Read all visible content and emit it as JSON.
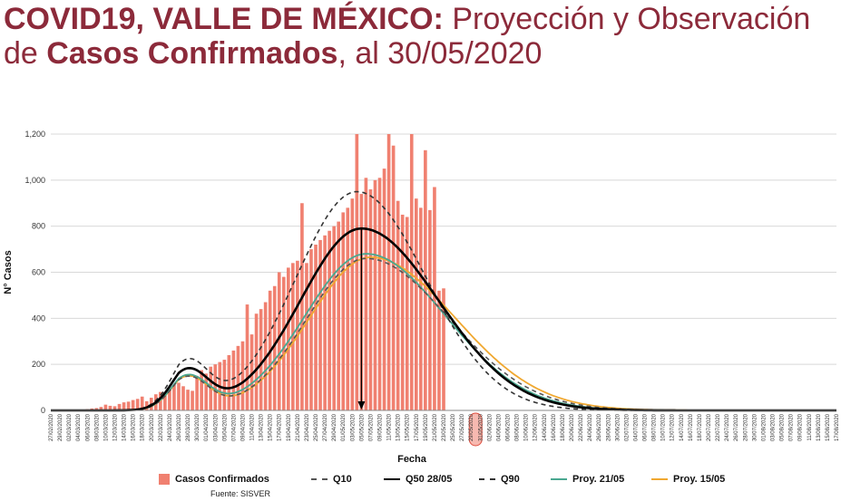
{
  "title": {
    "part1_bold": "COVID19, VALLE DE MÉXICO:",
    "part2": " Proyección y Observación de ",
    "part3_bold": "Casos Confirmados",
    "part4": ", al 30/05/2020"
  },
  "source": "Fuente: SISVER",
  "colors": {
    "bars": "#f08070",
    "q10": "#555555",
    "q50": "#000000",
    "q90": "#333333",
    "proy21": "#4aa890",
    "proy15": "#f0a830",
    "title": "#8c2a3a",
    "highlight": "#e05040"
  },
  "chart_data": {
    "type": "bar",
    "xlabel": "Fecha",
    "ylabel": "N° Casos",
    "ylim": [
      0,
      1200
    ],
    "yticks": [
      "0",
      "200",
      "400",
      "600",
      "800",
      "1,000",
      "1,200"
    ],
    "grid": true,
    "legend_position": "bottom",
    "date_start": "27/02/2020",
    "date_end": "17/08/2020",
    "highlighted_date": "30/05/2020",
    "arrow_date": "05/05/2020",
    "x_tick_labels": [
      "27/02/2020",
      "29/02/2020",
      "02/03/2020",
      "04/03/2020",
      "06/03/2020",
      "08/03/2020",
      "10/03/2020",
      "12/03/2020",
      "14/03/2020",
      "16/03/2020",
      "18/03/2020",
      "20/03/2020",
      "22/03/2020",
      "24/03/2020",
      "26/03/2020",
      "28/03/2020",
      "30/03/2020",
      "01/04/2020",
      "03/04/2020",
      "05/04/2020",
      "07/04/2020",
      "09/04/2020",
      "11/04/2020",
      "13/04/2020",
      "15/04/2020",
      "17/04/2020",
      "19/04/2020",
      "21/04/2020",
      "23/04/2020",
      "25/04/2020",
      "27/04/2020",
      "29/04/2020",
      "01/05/2020",
      "03/05/2020",
      "05/05/2020",
      "07/05/2020",
      "09/05/2020",
      "11/05/2020",
      "13/05/2020",
      "15/05/2020",
      "17/05/2020",
      "19/05/2020",
      "21/05/2020",
      "23/05/2020",
      "25/05/2020",
      "27/05/2020",
      "29/05/2020",
      "31/05/2020",
      "02/06/2020",
      "04/06/2020",
      "06/06/2020",
      "08/06/2020",
      "10/06/2020",
      "12/06/2020",
      "14/06/2020",
      "16/06/2020",
      "18/06/2020",
      "20/06/2020",
      "22/06/2020",
      "24/06/2020",
      "26/06/2020",
      "28/06/2020",
      "30/06/2020",
      "02/07/2020",
      "04/07/2020",
      "06/07/2020",
      "08/07/2020",
      "10/07/2020",
      "12/07/2020",
      "14/07/2020",
      "16/07/2020",
      "18/07/2020",
      "20/07/2020",
      "22/07/2020",
      "24/07/2020",
      "26/07/2020",
      "28/07/2020",
      "30/07/2020",
      "01/08/2020",
      "03/08/2020",
      "05/08/2020",
      "07/08/2020",
      "09/08/2020",
      "11/08/2020",
      "13/08/2020",
      "15/08/2020",
      "17/08/2020"
    ],
    "highlighted_tick_label": "30/05/2020",
    "bars": {
      "name": "Casos Confirmados",
      "values": [
        0,
        0,
        0,
        1,
        1,
        2,
        3,
        3,
        5,
        8,
        10,
        15,
        25,
        20,
        18,
        28,
        35,
        38,
        45,
        50,
        60,
        40,
        55,
        70,
        80,
        75,
        90,
        110,
        120,
        105,
        90,
        85,
        150,
        175,
        160,
        190,
        200,
        210,
        220,
        240,
        260,
        280,
        300,
        460,
        330,
        420,
        440,
        470,
        520,
        540,
        600,
        580,
        620,
        640,
        650,
        900,
        640,
        700,
        720,
        740,
        760,
        780,
        800,
        820,
        860,
        880,
        920,
        1200,
        940,
        1010,
        960,
        1000,
        1010,
        1050,
        1200,
        1150,
        910,
        850,
        840,
        1200,
        920,
        880,
        1130,
        870,
        970,
        520,
        530
      ]
    },
    "series": [
      {
        "name": "Q10",
        "style": "dashed",
        "peak": 660,
        "peak_date": "06/05/2020",
        "w1": 0.92,
        "w2": 1.1
      },
      {
        "name": "Q50 28/05",
        "style": "solid",
        "peak": 790,
        "peak_date": "05/05/2020",
        "w1": 0.95,
        "w2": 1.02
      },
      {
        "name": "Q90",
        "style": "dashed",
        "peak": 950,
        "peak_date": "04/05/2020",
        "w1": 0.95,
        "w2": 0.92
      },
      {
        "name": "Proy. 21/05",
        "style": "solid",
        "peak": 680,
        "peak_date": "06/05/2020",
        "w1": 0.95,
        "w2": 1.05
      },
      {
        "name": "Proy. 15/05",
        "style": "solid",
        "peak": 665,
        "peak_date": "07/05/2020",
        "w1": 0.95,
        "w2": 1.12
      }
    ]
  },
  "legend": {
    "bars": "Casos Confirmados",
    "q10": "Q10",
    "q50": "Q50 28/05",
    "q90": "Q90",
    "proy21": "Proy. 21/05",
    "proy15": "Proy. 15/05"
  }
}
